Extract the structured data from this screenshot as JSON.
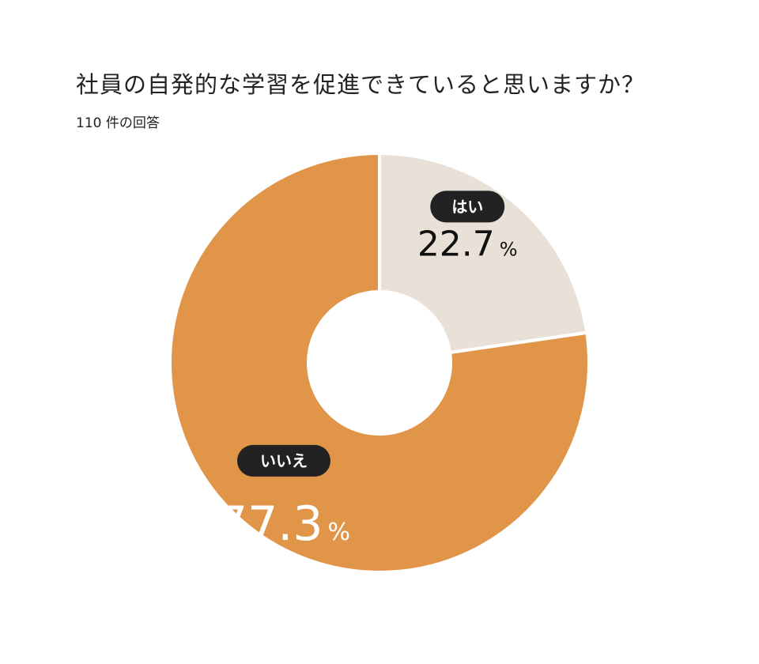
{
  "header": {
    "title": "社員の自発的な学習を促進できていると思いますか？",
    "subtitle": "110 件の回答"
  },
  "chart_data": {
    "type": "pie",
    "title": "社員の自発的な学習を促進できていると思いますか？",
    "subtitle": "110 件の回答",
    "donut": true,
    "percent_unit": "%",
    "slices": [
      {
        "label": "はい",
        "value": 22.7,
        "display": "22.7",
        "color": "#e9e1d7",
        "text_color": "#111111"
      },
      {
        "label": "いいえ",
        "value": 77.3,
        "display": "77.3",
        "color": "#e09548",
        "text_color": "#ffffff"
      }
    ]
  }
}
